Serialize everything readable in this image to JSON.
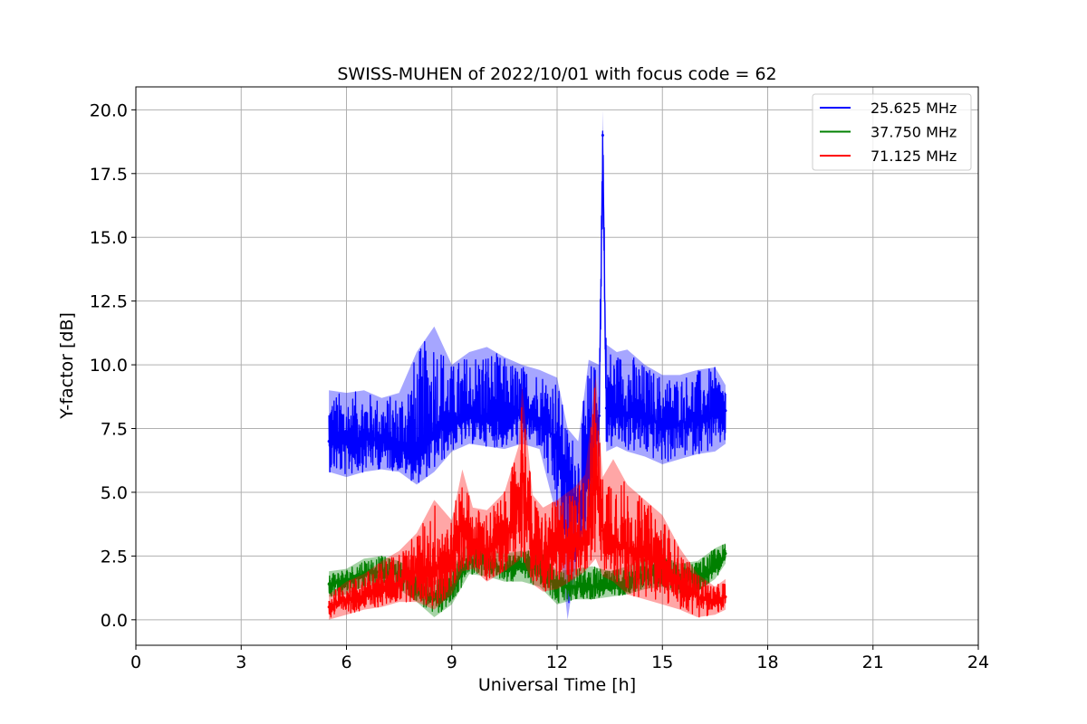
{
  "chart_data": {
    "type": "line",
    "title": "SWISS-MUHEN of 2022/10/01 with focus code = 62",
    "xlabel": "Universal Time [h]",
    "ylabel": "Y-factor [dB]",
    "xlim": [
      0,
      24
    ],
    "ylim": [
      -1.0,
      20.9
    ],
    "xticks": [
      0,
      3,
      6,
      9,
      12,
      15,
      18,
      21,
      24
    ],
    "xtick_labels": [
      "0",
      "3",
      "6",
      "9",
      "12",
      "15",
      "18",
      "21",
      "24"
    ],
    "yticks": [
      0.0,
      2.5,
      5.0,
      7.5,
      10.0,
      12.5,
      15.0,
      17.5,
      20.0
    ],
    "ytick_labels": [
      "0.0",
      "2.5",
      "5.0",
      "7.5",
      "10.0",
      "12.5",
      "15.0",
      "17.5",
      "20.0"
    ],
    "grid": true,
    "legend_position": "top-right",
    "series": [
      {
        "name": "25.625 MHz",
        "color": "#0000ff",
        "x": [
          5.5,
          6.0,
          6.5,
          7.0,
          7.5,
          8.0,
          8.5,
          9.0,
          9.5,
          10.0,
          10.5,
          11.0,
          11.5,
          12.0,
          12.3,
          12.6,
          12.9,
          13.2,
          13.3,
          13.4,
          13.7,
          14.0,
          14.5,
          15.0,
          15.5,
          16.0,
          16.5,
          16.8
        ],
        "y": [
          7.0,
          6.9,
          7.2,
          7.0,
          6.8,
          6.4,
          7.3,
          7.8,
          7.9,
          7.9,
          7.8,
          8.1,
          7.9,
          7.0,
          5.5,
          4.5,
          5.5,
          8.0,
          19.0,
          8.3,
          8.2,
          8.1,
          8.0,
          7.6,
          7.7,
          7.9,
          8.0,
          8.2
        ],
        "upper": [
          9.0,
          8.9,
          9.0,
          8.7,
          8.9,
          10.5,
          11.5,
          10.0,
          10.5,
          10.7,
          10.3,
          10.0,
          9.8,
          9.5,
          7.5,
          7.0,
          10.2,
          10.0,
          20.0,
          10.8,
          10.5,
          10.6,
          10.0,
          9.6,
          9.6,
          9.8,
          9.9,
          9.2
        ],
        "lower": [
          5.8,
          5.6,
          5.8,
          5.9,
          5.8,
          5.3,
          5.8,
          6.6,
          6.9,
          6.8,
          6.7,
          6.9,
          6.7,
          4.0,
          0.0,
          2.7,
          3.5,
          6.6,
          16.0,
          6.6,
          6.8,
          6.6,
          6.4,
          6.1,
          6.3,
          6.5,
          6.6,
          6.9
        ]
      },
      {
        "name": "37.750 MHz",
        "color": "#008000",
        "x": [
          5.5,
          6.0,
          6.5,
          7.0,
          7.5,
          8.0,
          8.5,
          9.0,
          9.5,
          10.0,
          10.5,
          11.0,
          11.5,
          12.0,
          12.5,
          13.0,
          13.5,
          14.0,
          14.5,
          15.0,
          15.5,
          16.0,
          16.5,
          16.8
        ],
        "y": [
          1.4,
          1.5,
          1.8,
          1.9,
          1.8,
          1.3,
          0.8,
          1.2,
          2.3,
          2.2,
          2.0,
          2.1,
          2.0,
          1.4,
          1.3,
          1.3,
          1.3,
          1.5,
          1.8,
          1.9,
          1.6,
          1.7,
          2.1,
          2.6
        ],
        "upper": [
          1.9,
          2.0,
          2.4,
          2.5,
          2.3,
          1.9,
          1.5,
          2.0,
          3.1,
          2.8,
          2.6,
          2.7,
          2.7,
          1.9,
          2.0,
          2.1,
          1.9,
          2.1,
          2.5,
          2.5,
          2.2,
          2.3,
          2.8,
          3.0
        ],
        "lower": [
          0.9,
          1.0,
          1.3,
          1.4,
          1.2,
          0.7,
          0.1,
          0.6,
          1.8,
          1.7,
          1.5,
          1.5,
          1.3,
          0.6,
          0.8,
          0.8,
          0.9,
          1.0,
          1.2,
          1.3,
          1.0,
          1.1,
          1.6,
          2.2
        ]
      },
      {
        "name": "71.125 MHz",
        "color": "#ff0000",
        "x": [
          5.5,
          6.0,
          6.5,
          7.0,
          7.5,
          8.0,
          8.5,
          9.0,
          9.3,
          9.6,
          10.0,
          10.5,
          10.9,
          11.0,
          11.3,
          11.6,
          12.0,
          12.5,
          12.8,
          13.1,
          13.3,
          13.6,
          14.0,
          14.5,
          15.0,
          15.5,
          16.0,
          16.5,
          16.8
        ],
        "y": [
          0.5,
          0.8,
          0.9,
          1.1,
          1.5,
          1.9,
          2.0,
          2.3,
          3.8,
          3.0,
          2.7,
          3.2,
          4.5,
          6.0,
          2.8,
          2.2,
          2.9,
          3.2,
          3.0,
          5.5,
          3.5,
          3.0,
          2.8,
          2.5,
          2.2,
          1.5,
          0.9,
          0.7,
          0.9
        ],
        "upper": [
          1.0,
          1.5,
          1.8,
          2.3,
          2.7,
          3.4,
          4.7,
          3.9,
          5.9,
          4.4,
          4.3,
          5.0,
          6.8,
          9.2,
          4.9,
          4.4,
          4.7,
          5.2,
          5.7,
          9.6,
          5.6,
          6.3,
          5.3,
          4.7,
          4.1,
          2.8,
          1.8,
          1.3,
          1.6
        ],
        "lower": [
          0.0,
          0.2,
          0.4,
          0.5,
          0.7,
          0.7,
          0.4,
          1.0,
          1.9,
          2.0,
          1.5,
          1.9,
          2.3,
          2.5,
          1.4,
          1.1,
          1.2,
          1.6,
          1.9,
          2.4,
          1.7,
          1.5,
          1.0,
          0.8,
          0.6,
          0.4,
          0.1,
          0.2,
          0.4
        ]
      }
    ]
  }
}
